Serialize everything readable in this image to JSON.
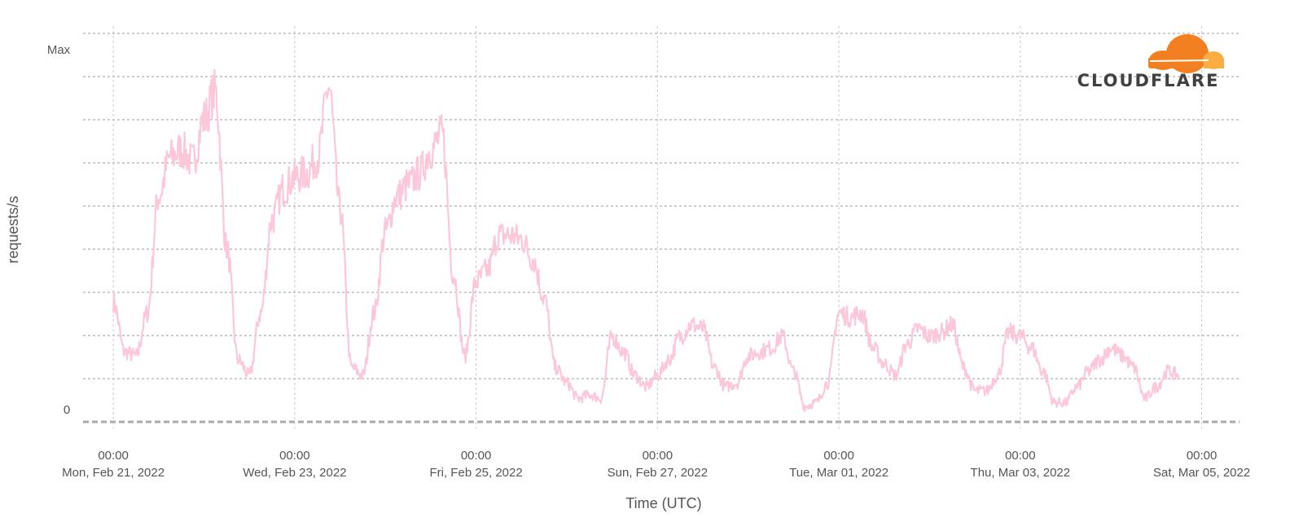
{
  "chart_data": {
    "type": "line",
    "title": "",
    "xlabel": "Time (UTC)",
    "ylabel": "requests/s",
    "y_ticks": [
      {
        "label": "0",
        "value": 0
      },
      {
        "label": "Max",
        "value": 1
      }
    ],
    "ylim": [
      0,
      1
    ],
    "x_ticks": [
      {
        "time": "00:00",
        "date": "Mon, Feb 21, 2022"
      },
      {
        "time": "00:00",
        "date": "Wed, Feb 23, 2022"
      },
      {
        "time": "00:00",
        "date": "Fri, Feb 25, 2022"
      },
      {
        "time": "00:00",
        "date": "Sun, Feb 27, 2022"
      },
      {
        "time": "00:00",
        "date": "Tue, Mar 01, 2022"
      },
      {
        "time": "00:00",
        "date": "Thu, Mar 03, 2022"
      },
      {
        "time": "00:00",
        "date": "Sat, Mar 05, 2022"
      }
    ],
    "xlim": [
      "2022-02-20T16:00",
      "2022-03-05T10:00"
    ],
    "grid": true,
    "series": [
      {
        "color": "#fcc7d8",
        "x": [
          "2022-02-21T00:00",
          "2022-02-21T03:00",
          "2022-02-21T06:00",
          "2022-02-21T09:00",
          "2022-02-21T12:00",
          "2022-02-21T15:00",
          "2022-02-21T18:00",
          "2022-02-21T21:00",
          "2022-02-22T00:00",
          "2022-02-22T03:00",
          "2022-02-22T06:00",
          "2022-02-22T09:00",
          "2022-02-22T12:00",
          "2022-02-22T15:00",
          "2022-02-22T18:00",
          "2022-02-22T21:00",
          "2022-02-23T00:00",
          "2022-02-23T03:00",
          "2022-02-23T06:00",
          "2022-02-23T09:00",
          "2022-02-23T12:00",
          "2022-02-23T15:00",
          "2022-02-23T18:00",
          "2022-02-23T21:00",
          "2022-02-24T00:00",
          "2022-02-24T03:00",
          "2022-02-24T06:00",
          "2022-02-24T09:00",
          "2022-02-24T12:00",
          "2022-02-24T15:00",
          "2022-02-24T18:00",
          "2022-02-24T21:00",
          "2022-02-25T00:00",
          "2022-02-25T03:00",
          "2022-02-25T06:00",
          "2022-02-25T09:00",
          "2022-02-25T12:00",
          "2022-02-25T15:00",
          "2022-02-25T18:00",
          "2022-02-25T21:00",
          "2022-02-26T00:00",
          "2022-02-26T03:00",
          "2022-02-26T06:00",
          "2022-02-26T09:00",
          "2022-02-26T12:00",
          "2022-02-26T15:00",
          "2022-02-26T18:00",
          "2022-02-26T21:00",
          "2022-02-27T00:00",
          "2022-02-27T03:00",
          "2022-02-27T06:00",
          "2022-02-27T09:00",
          "2022-02-27T12:00",
          "2022-02-27T15:00",
          "2022-02-27T18:00",
          "2022-02-27T21:00",
          "2022-02-28T00:00",
          "2022-02-28T03:00",
          "2022-02-28T06:00",
          "2022-02-28T09:00",
          "2022-02-28T12:00",
          "2022-02-28T15:00",
          "2022-02-28T18:00",
          "2022-02-28T21:00",
          "2022-03-01T00:00",
          "2022-03-01T03:00",
          "2022-03-01T06:00",
          "2022-03-01T09:00",
          "2022-03-01T12:00",
          "2022-03-01T15:00",
          "2022-03-01T18:00",
          "2022-03-01T21:00",
          "2022-03-02T00:00",
          "2022-03-02T03:00",
          "2022-03-02T06:00",
          "2022-03-02T09:00",
          "2022-03-02T12:00",
          "2022-03-02T15:00",
          "2022-03-02T18:00",
          "2022-03-02T21:00",
          "2022-03-03T00:00",
          "2022-03-03T03:00",
          "2022-03-03T06:00",
          "2022-03-03T09:00",
          "2022-03-03T12:00",
          "2022-03-03T15:00",
          "2022-03-03T18:00",
          "2022-03-03T21:00",
          "2022-03-04T00:00",
          "2022-03-04T03:00",
          "2022-03-04T06:00",
          "2022-03-04T09:00",
          "2022-03-04T12:00",
          "2022-03-04T15:00",
          "2022-03-04T18:00"
        ],
        "values": [
          0.31,
          0.18,
          0.17,
          0.28,
          0.58,
          0.68,
          0.7,
          0.67,
          0.78,
          0.85,
          0.45,
          0.16,
          0.12,
          0.28,
          0.52,
          0.6,
          0.63,
          0.64,
          0.68,
          0.86,
          0.55,
          0.14,
          0.12,
          0.28,
          0.49,
          0.58,
          0.61,
          0.64,
          0.7,
          0.74,
          0.38,
          0.17,
          0.36,
          0.39,
          0.48,
          0.48,
          0.47,
          0.42,
          0.32,
          0.14,
          0.1,
          0.06,
          0.07,
          0.06,
          0.22,
          0.18,
          0.12,
          0.09,
          0.12,
          0.16,
          0.22,
          0.25,
          0.24,
          0.14,
          0.09,
          0.1,
          0.17,
          0.18,
          0.19,
          0.22,
          0.13,
          0.04,
          0.05,
          0.1,
          0.28,
          0.27,
          0.28,
          0.19,
          0.15,
          0.12,
          0.2,
          0.24,
          0.22,
          0.23,
          0.25,
          0.14,
          0.08,
          0.08,
          0.12,
          0.23,
          0.22,
          0.19,
          0.13,
          0.05,
          0.05,
          0.09,
          0.13,
          0.16,
          0.19,
          0.17,
          0.14,
          0.06,
          0.09,
          0.13,
          0.12
        ]
      }
    ]
  },
  "logo": {
    "text": "CLOUDFLARE",
    "cloud_colors": [
      "#f38020",
      "#faae40"
    ]
  }
}
